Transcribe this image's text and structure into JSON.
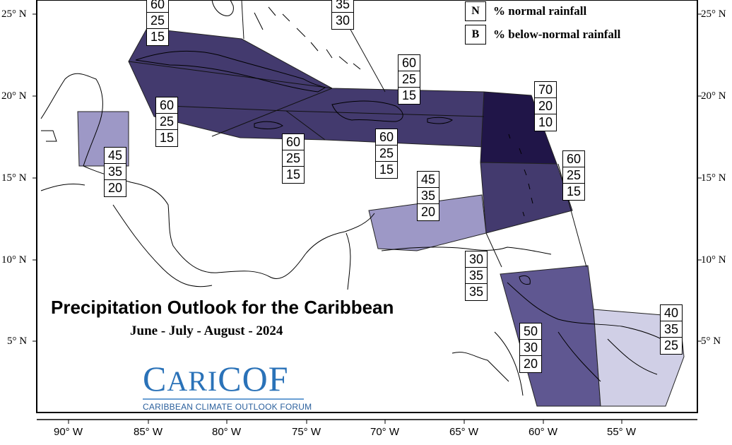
{
  "map": {
    "title": "Precipitation Outlook for the Caribbean",
    "subtitle": "June - July - August - 2024",
    "legend": [
      {
        "key": "N",
        "text": "% normal rainfall"
      },
      {
        "key": "B",
        "text": "% below-normal rainfall"
      }
    ],
    "lat_labels": [
      "25° N",
      "20° N",
      "15° N",
      "10° N",
      "5° N"
    ],
    "lon_labels": [
      "90° W",
      "85° W",
      "80° W",
      "75° W",
      "70° W",
      "65° W",
      "60° W",
      "55° W"
    ],
    "colors": {
      "prob_70": "#201548",
      "prob_60": "#433a6e",
      "prob_50": "#5f5791",
      "prob_45": "#9d98c6",
      "prob_40": "#d0cfe6",
      "prob_30": "#ffffff"
    },
    "zones": [
      {
        "id": "bahamas",
        "values": [
          "60",
          "25",
          "15"
        ]
      },
      {
        "id": "turks-caicos",
        "values": [
          "35",
          "30"
        ]
      },
      {
        "id": "greater-antilles-east",
        "values": [
          "60",
          "25",
          "15"
        ]
      },
      {
        "id": "cuba-west",
        "values": [
          "60",
          "25",
          "15"
        ]
      },
      {
        "id": "belize",
        "values": [
          "45",
          "35",
          "20"
        ]
      },
      {
        "id": "jamaica",
        "values": [
          "60",
          "25",
          "15"
        ]
      },
      {
        "id": "hispaniola-south",
        "values": [
          "60",
          "25",
          "15"
        ]
      },
      {
        "id": "leeward-islands",
        "values": [
          "70",
          "20",
          "10"
        ]
      },
      {
        "id": "windward-islands",
        "values": [
          "60",
          "25",
          "15"
        ]
      },
      {
        "id": "abc-islands",
        "values": [
          "45",
          "35",
          "20"
        ]
      },
      {
        "id": "trinidad",
        "values": [
          "30",
          "35",
          "35"
        ]
      },
      {
        "id": "guyana",
        "values": [
          "50",
          "30",
          "20"
        ]
      },
      {
        "id": "suriname-guiana",
        "values": [
          "40",
          "35",
          "25"
        ]
      }
    ]
  },
  "logo": {
    "name": "CariCOF",
    "tagline": "CARIBBEAN CLIMATE OUTLOOK FORUM"
  }
}
